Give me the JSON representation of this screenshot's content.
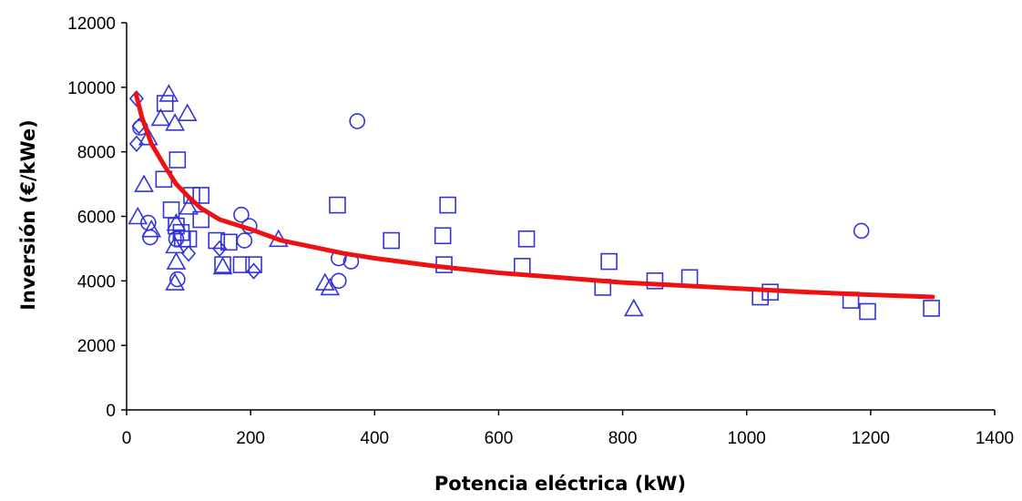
{
  "chart_data": {
    "type": "scatter",
    "title": "",
    "xlabel": "Potencia eléctrica (kW)",
    "ylabel": "Inversión (€/kWe)",
    "xlim": [
      0,
      1400
    ],
    "ylim": [
      0,
      12000
    ],
    "xticks": [
      0,
      200,
      400,
      600,
      800,
      1000,
      1200,
      1400
    ],
    "yticks": [
      0,
      2000,
      4000,
      6000,
      8000,
      10000,
      12000
    ],
    "grid": false,
    "legend": "none",
    "colors": {
      "markers": "#3333dd",
      "trend": "#ee1111",
      "axis": "#000000"
    },
    "series": [
      {
        "marker": "diamond",
        "points": [
          [
            16,
            9650
          ],
          [
            16,
            8250
          ],
          [
            20,
            8800
          ],
          [
            100,
            4850
          ],
          [
            150,
            5000
          ],
          [
            205,
            4300
          ]
        ]
      },
      {
        "marker": "triangle",
        "points": [
          [
            18,
            6000
          ],
          [
            28,
            7000
          ],
          [
            35,
            8450
          ],
          [
            40,
            5600
          ],
          [
            55,
            9050
          ],
          [
            68,
            9800
          ],
          [
            78,
            8900
          ],
          [
            98,
            9200
          ],
          [
            100,
            6300
          ],
          [
            80,
            5800
          ],
          [
            78,
            5100
          ],
          [
            80,
            4600
          ],
          [
            78,
            3950
          ],
          [
            155,
            4450
          ],
          [
            245,
            5300
          ],
          [
            320,
            3950
          ],
          [
            328,
            3800
          ],
          [
            818,
            3150
          ]
        ]
      },
      {
        "marker": "square",
        "points": [
          [
            60,
            7150
          ],
          [
            62,
            9500
          ],
          [
            72,
            6200
          ],
          [
            82,
            7750
          ],
          [
            80,
            5700
          ],
          [
            88,
            5500
          ],
          [
            90,
            5300
          ],
          [
            100,
            5300
          ],
          [
            105,
            6650
          ],
          [
            120,
            6650
          ],
          [
            120,
            5900
          ],
          [
            145,
            5250
          ],
          [
            155,
            4500
          ],
          [
            165,
            5200
          ],
          [
            185,
            4500
          ],
          [
            205,
            4500
          ],
          [
            340,
            6350
          ],
          [
            427,
            5250
          ],
          [
            510,
            5400
          ],
          [
            512,
            4500
          ],
          [
            518,
            6350
          ],
          [
            645,
            5300
          ],
          [
            638,
            4450
          ],
          [
            778,
            4600
          ],
          [
            768,
            3800
          ],
          [
            852,
            4000
          ],
          [
            908,
            4100
          ],
          [
            1022,
            3500
          ],
          [
            1038,
            3650
          ],
          [
            1168,
            3400
          ],
          [
            1195,
            3050
          ],
          [
            1298,
            3150
          ]
        ]
      },
      {
        "marker": "circle",
        "points": [
          [
            22,
            8750
          ],
          [
            35,
            5800
          ],
          [
            38,
            5350
          ],
          [
            80,
            5300
          ],
          [
            82,
            4050
          ],
          [
            185,
            6050
          ],
          [
            190,
            5250
          ],
          [
            198,
            5700
          ],
          [
            342,
            4700
          ],
          [
            342,
            4000
          ],
          [
            362,
            4600
          ],
          [
            372,
            8950
          ],
          [
            1185,
            5550
          ]
        ]
      },
      {
        "name": "",
        "marker": "line",
        "points": [
          [
            15,
            9800
          ],
          [
            25,
            9050
          ],
          [
            40,
            8250
          ],
          [
            60,
            7600
          ],
          [
            80,
            7000
          ],
          [
            100,
            6600
          ],
          [
            120,
            6250
          ],
          [
            150,
            5900
          ],
          [
            200,
            5600
          ],
          [
            250,
            5250
          ],
          [
            300,
            5050
          ],
          [
            350,
            4850
          ],
          [
            400,
            4700
          ],
          [
            500,
            4450
          ],
          [
            600,
            4250
          ],
          [
            700,
            4100
          ],
          [
            800,
            3950
          ],
          [
            900,
            3850
          ],
          [
            1000,
            3750
          ],
          [
            1100,
            3650
          ],
          [
            1200,
            3570
          ],
          [
            1300,
            3500
          ]
        ]
      }
    ]
  }
}
